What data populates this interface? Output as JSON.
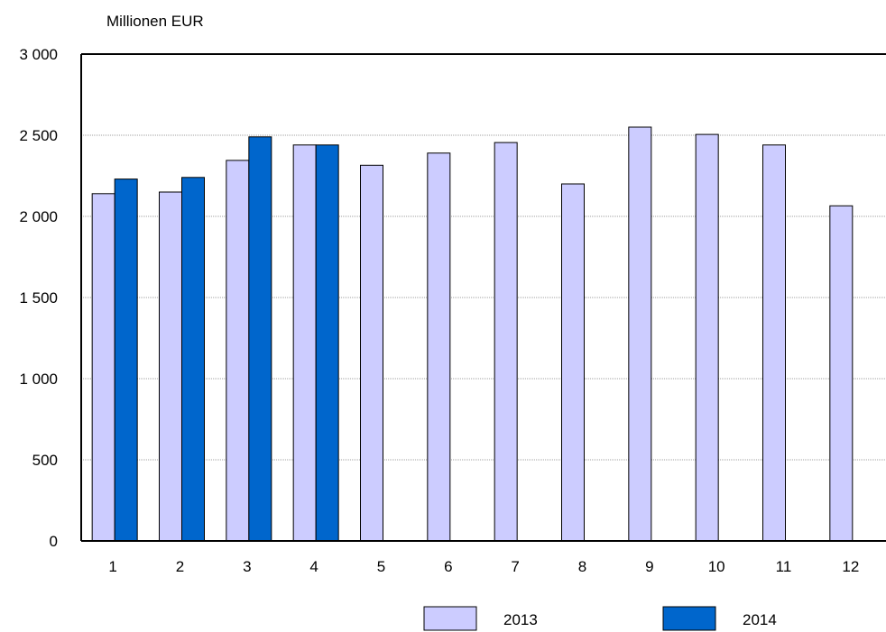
{
  "chart_data": {
    "type": "bar",
    "unit_label": "Millionen EUR",
    "categories": [
      "1",
      "2",
      "3",
      "4",
      "5",
      "6",
      "7",
      "8",
      "9",
      "10",
      "11",
      "12"
    ],
    "series": [
      {
        "name": "2013",
        "color": "#ccccff",
        "values": [
          2140,
          2150,
          2345,
          2440,
          2315,
          2390,
          2455,
          2200,
          2550,
          2505,
          2440,
          2065
        ]
      },
      {
        "name": "2014",
        "color": "#0066cc",
        "values": [
          2230,
          2240,
          2490,
          2440,
          null,
          null,
          null,
          null,
          null,
          null,
          null,
          null
        ]
      }
    ],
    "ylim": [
      0,
      3000
    ],
    "y_ticks": [
      0,
      500,
      1000,
      1500,
      2000,
      2500,
      3000
    ],
    "y_tick_labels": [
      "0",
      "500",
      "1 000",
      "1 500",
      "2 000",
      "2 500",
      "3 000"
    ],
    "grid": true,
    "legend_position": "bottom"
  }
}
